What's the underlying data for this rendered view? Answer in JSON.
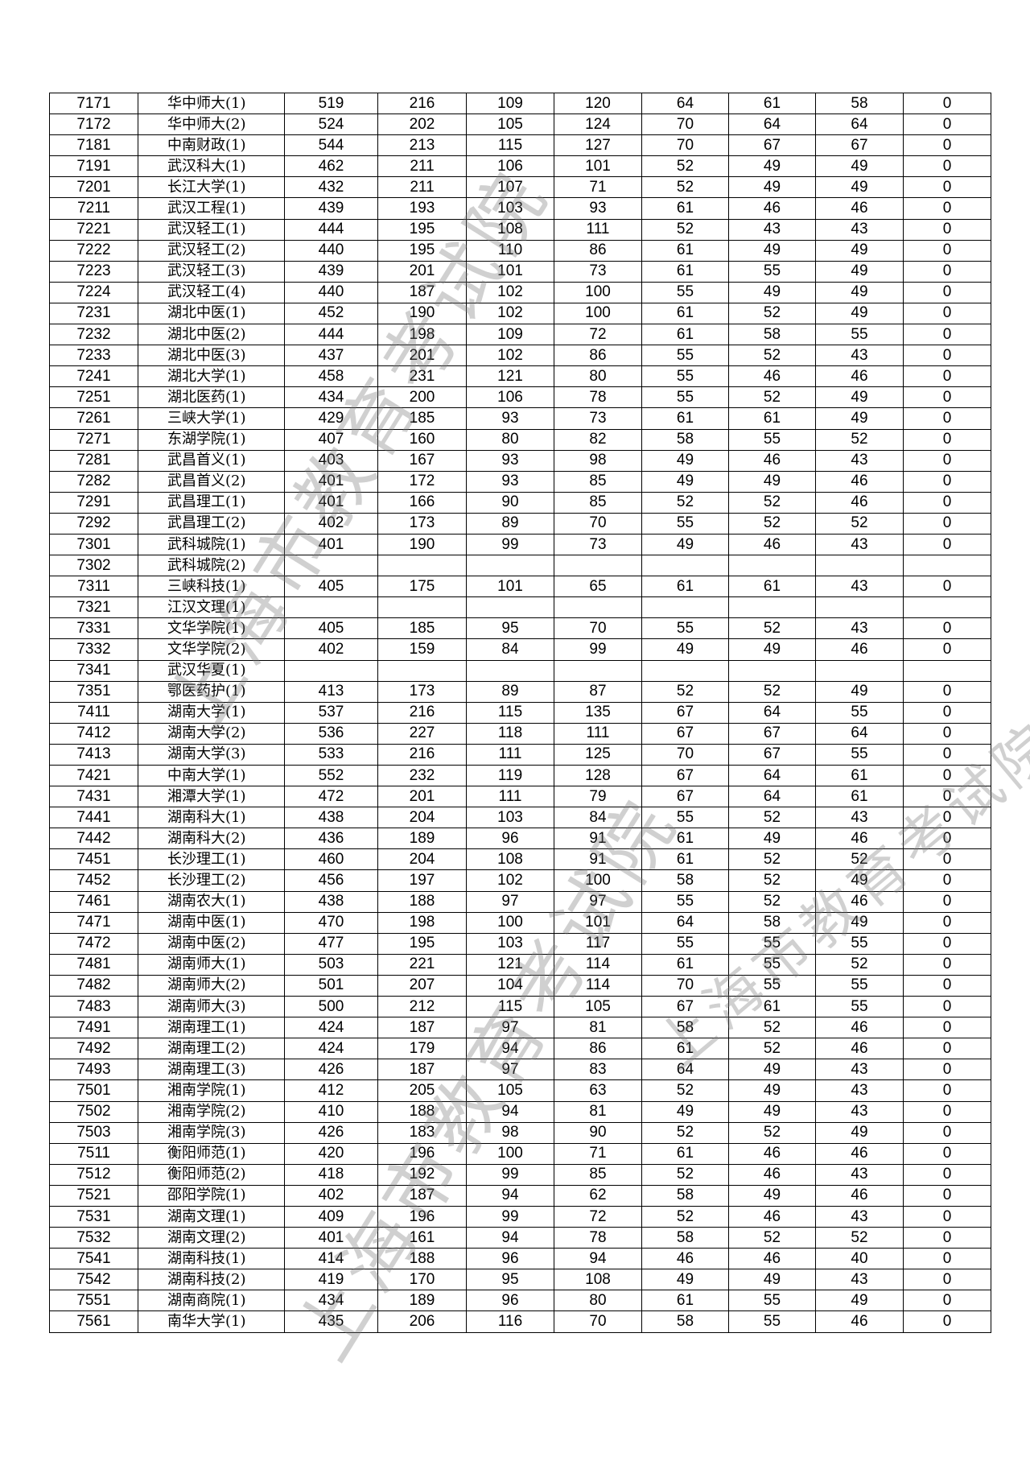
{
  "watermark": "上海市教育考试院",
  "rows": [
    [
      "7171",
      "华中师大(1)",
      "519",
      "216",
      "109",
      "120",
      "64",
      "61",
      "58",
      "0"
    ],
    [
      "7172",
      "华中师大(2)",
      "524",
      "202",
      "105",
      "124",
      "70",
      "64",
      "64",
      "0"
    ],
    [
      "7181",
      "中南财政(1)",
      "544",
      "213",
      "115",
      "127",
      "70",
      "67",
      "67",
      "0"
    ],
    [
      "7191",
      "武汉科大(1)",
      "462",
      "211",
      "106",
      "101",
      "52",
      "49",
      "49",
      "0"
    ],
    [
      "7201",
      "长江大学(1)",
      "432",
      "211",
      "107",
      "71",
      "52",
      "49",
      "49",
      "0"
    ],
    [
      "7211",
      "武汉工程(1)",
      "439",
      "193",
      "103",
      "93",
      "61",
      "46",
      "46",
      "0"
    ],
    [
      "7221",
      "武汉轻工(1)",
      "444",
      "195",
      "108",
      "111",
      "52",
      "43",
      "43",
      "0"
    ],
    [
      "7222",
      "武汉轻工(2)",
      "440",
      "195",
      "110",
      "86",
      "61",
      "49",
      "49",
      "0"
    ],
    [
      "7223",
      "武汉轻工(3)",
      "439",
      "201",
      "101",
      "73",
      "61",
      "55",
      "49",
      "0"
    ],
    [
      "7224",
      "武汉轻工(4)",
      "440",
      "187",
      "102",
      "100",
      "55",
      "49",
      "49",
      "0"
    ],
    [
      "7231",
      "湖北中医(1)",
      "452",
      "190",
      "102",
      "100",
      "61",
      "52",
      "49",
      "0"
    ],
    [
      "7232",
      "湖北中医(2)",
      "444",
      "198",
      "109",
      "72",
      "61",
      "58",
      "55",
      "0"
    ],
    [
      "7233",
      "湖北中医(3)",
      "437",
      "201",
      "102",
      "86",
      "55",
      "52",
      "43",
      "0"
    ],
    [
      "7241",
      "湖北大学(1)",
      "458",
      "231",
      "121",
      "80",
      "55",
      "46",
      "46",
      "0"
    ],
    [
      "7251",
      "湖北医药(1)",
      "434",
      "200",
      "106",
      "78",
      "55",
      "52",
      "49",
      "0"
    ],
    [
      "7261",
      "三峡大学(1)",
      "429",
      "185",
      "93",
      "73",
      "61",
      "61",
      "49",
      "0"
    ],
    [
      "7271",
      "东湖学院(1)",
      "407",
      "160",
      "80",
      "82",
      "58",
      "55",
      "52",
      "0"
    ],
    [
      "7281",
      "武昌首义(1)",
      "403",
      "167",
      "93",
      "98",
      "49",
      "46",
      "43",
      "0"
    ],
    [
      "7282",
      "武昌首义(2)",
      "401",
      "172",
      "93",
      "85",
      "49",
      "49",
      "46",
      "0"
    ],
    [
      "7291",
      "武昌理工(1)",
      "401",
      "166",
      "90",
      "85",
      "52",
      "52",
      "46",
      "0"
    ],
    [
      "7292",
      "武昌理工(2)",
      "402",
      "173",
      "89",
      "70",
      "55",
      "52",
      "52",
      "0"
    ],
    [
      "7301",
      "武科城院(1)",
      "401",
      "190",
      "99",
      "73",
      "49",
      "46",
      "43",
      "0"
    ],
    [
      "7302",
      "武科城院(2)",
      "",
      "",
      "",
      "",
      "",
      "",
      "",
      ""
    ],
    [
      "7311",
      "三峡科技(1)",
      "405",
      "175",
      "101",
      "65",
      "61",
      "61",
      "43",
      "0"
    ],
    [
      "7321",
      "江汉文理(1)",
      "",
      "",
      "",
      "",
      "",
      "",
      "",
      ""
    ],
    [
      "7331",
      "文华学院(1)",
      "405",
      "185",
      "95",
      "70",
      "55",
      "52",
      "43",
      "0"
    ],
    [
      "7332",
      "文华学院(2)",
      "402",
      "159",
      "84",
      "99",
      "49",
      "49",
      "46",
      "0"
    ],
    [
      "7341",
      "武汉华夏(1)",
      "",
      "",
      "",
      "",
      "",
      "",
      "",
      ""
    ],
    [
      "7351",
      "鄂医药护(1)",
      "413",
      "173",
      "89",
      "87",
      "52",
      "52",
      "49",
      "0"
    ],
    [
      "7411",
      "湖南大学(1)",
      "537",
      "216",
      "115",
      "135",
      "67",
      "64",
      "55",
      "0"
    ],
    [
      "7412",
      "湖南大学(2)",
      "536",
      "227",
      "118",
      "111",
      "67",
      "67",
      "64",
      "0"
    ],
    [
      "7413",
      "湖南大学(3)",
      "533",
      "216",
      "111",
      "125",
      "70",
      "67",
      "55",
      "0"
    ],
    [
      "7421",
      "中南大学(1)",
      "552",
      "232",
      "119",
      "128",
      "67",
      "64",
      "61",
      "0"
    ],
    [
      "7431",
      "湘潭大学(1)",
      "472",
      "201",
      "111",
      "79",
      "67",
      "64",
      "61",
      "0"
    ],
    [
      "7441",
      "湖南科大(1)",
      "438",
      "204",
      "103",
      "84",
      "55",
      "52",
      "43",
      "0"
    ],
    [
      "7442",
      "湖南科大(2)",
      "436",
      "189",
      "96",
      "91",
      "61",
      "49",
      "46",
      "0"
    ],
    [
      "7451",
      "长沙理工(1)",
      "460",
      "204",
      "108",
      "91",
      "61",
      "52",
      "52",
      "0"
    ],
    [
      "7452",
      "长沙理工(2)",
      "456",
      "197",
      "102",
      "100",
      "58",
      "52",
      "49",
      "0"
    ],
    [
      "7461",
      "湖南农大(1)",
      "438",
      "188",
      "97",
      "97",
      "55",
      "52",
      "46",
      "0"
    ],
    [
      "7471",
      "湖南中医(1)",
      "470",
      "198",
      "100",
      "101",
      "64",
      "58",
      "49",
      "0"
    ],
    [
      "7472",
      "湖南中医(2)",
      "477",
      "195",
      "103",
      "117",
      "55",
      "55",
      "55",
      "0"
    ],
    [
      "7481",
      "湖南师大(1)",
      "503",
      "221",
      "121",
      "114",
      "61",
      "55",
      "52",
      "0"
    ],
    [
      "7482",
      "湖南师大(2)",
      "501",
      "207",
      "104",
      "114",
      "70",
      "55",
      "55",
      "0"
    ],
    [
      "7483",
      "湖南师大(3)",
      "500",
      "212",
      "115",
      "105",
      "67",
      "61",
      "55",
      "0"
    ],
    [
      "7491",
      "湖南理工(1)",
      "424",
      "187",
      "97",
      "81",
      "58",
      "52",
      "46",
      "0"
    ],
    [
      "7492",
      "湖南理工(2)",
      "424",
      "179",
      "94",
      "86",
      "61",
      "52",
      "46",
      "0"
    ],
    [
      "7493",
      "湖南理工(3)",
      "426",
      "187",
      "97",
      "83",
      "64",
      "49",
      "43",
      "0"
    ],
    [
      "7501",
      "湘南学院(1)",
      "412",
      "205",
      "105",
      "63",
      "52",
      "49",
      "43",
      "0"
    ],
    [
      "7502",
      "湘南学院(2)",
      "410",
      "188",
      "94",
      "81",
      "49",
      "49",
      "43",
      "0"
    ],
    [
      "7503",
      "湘南学院(3)",
      "426",
      "183",
      "98",
      "90",
      "52",
      "52",
      "49",
      "0"
    ],
    [
      "7511",
      "衡阳师范(1)",
      "420",
      "196",
      "100",
      "71",
      "61",
      "46",
      "46",
      "0"
    ],
    [
      "7512",
      "衡阳师范(2)",
      "418",
      "192",
      "99",
      "85",
      "52",
      "46",
      "43",
      "0"
    ],
    [
      "7521",
      "邵阳学院(1)",
      "402",
      "187",
      "94",
      "62",
      "58",
      "49",
      "46",
      "0"
    ],
    [
      "7531",
      "湖南文理(1)",
      "409",
      "196",
      "99",
      "72",
      "52",
      "46",
      "43",
      "0"
    ],
    [
      "7532",
      "湖南文理(2)",
      "401",
      "161",
      "94",
      "78",
      "58",
      "52",
      "52",
      "0"
    ],
    [
      "7541",
      "湖南科技(1)",
      "414",
      "188",
      "96",
      "94",
      "46",
      "46",
      "40",
      "0"
    ],
    [
      "7542",
      "湖南科技(2)",
      "419",
      "170",
      "95",
      "108",
      "49",
      "49",
      "43",
      "0"
    ],
    [
      "7551",
      "湖南商院(1)",
      "434",
      "189",
      "96",
      "80",
      "61",
      "55",
      "49",
      "0"
    ],
    [
      "7561",
      "南华大学(1)",
      "435",
      "206",
      "116",
      "70",
      "58",
      "55",
      "46",
      "0"
    ]
  ]
}
